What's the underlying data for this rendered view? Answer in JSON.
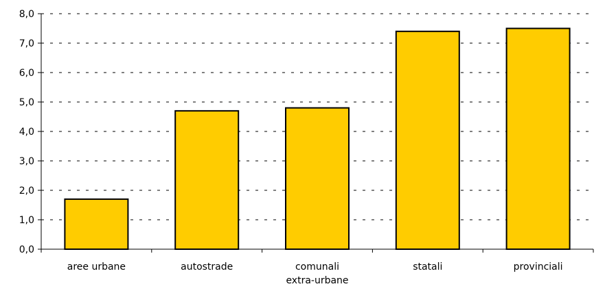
{
  "chart_data": {
    "type": "bar",
    "categories": [
      "aree urbane",
      "autostrade",
      "comunali extra-urbane",
      "statali",
      "provinciali"
    ],
    "category_label_lines": [
      [
        "aree urbane"
      ],
      [
        "autostrade"
      ],
      [
        "comunali",
        "extra-urbane"
      ],
      [
        "statali"
      ],
      [
        "provinciali"
      ]
    ],
    "values": [
      1.7,
      4.7,
      4.8,
      7.4,
      7.5
    ],
    "y_ticks": [
      "0,0",
      "1,0",
      "2,0",
      "3,0",
      "4,0",
      "5,0",
      "6,0",
      "7,0",
      "8,0"
    ],
    "ylim": [
      0,
      8
    ],
    "grid": "horizontal dashed",
    "bar_color": "#FFCC00",
    "bar_edge_color": "#000000"
  }
}
